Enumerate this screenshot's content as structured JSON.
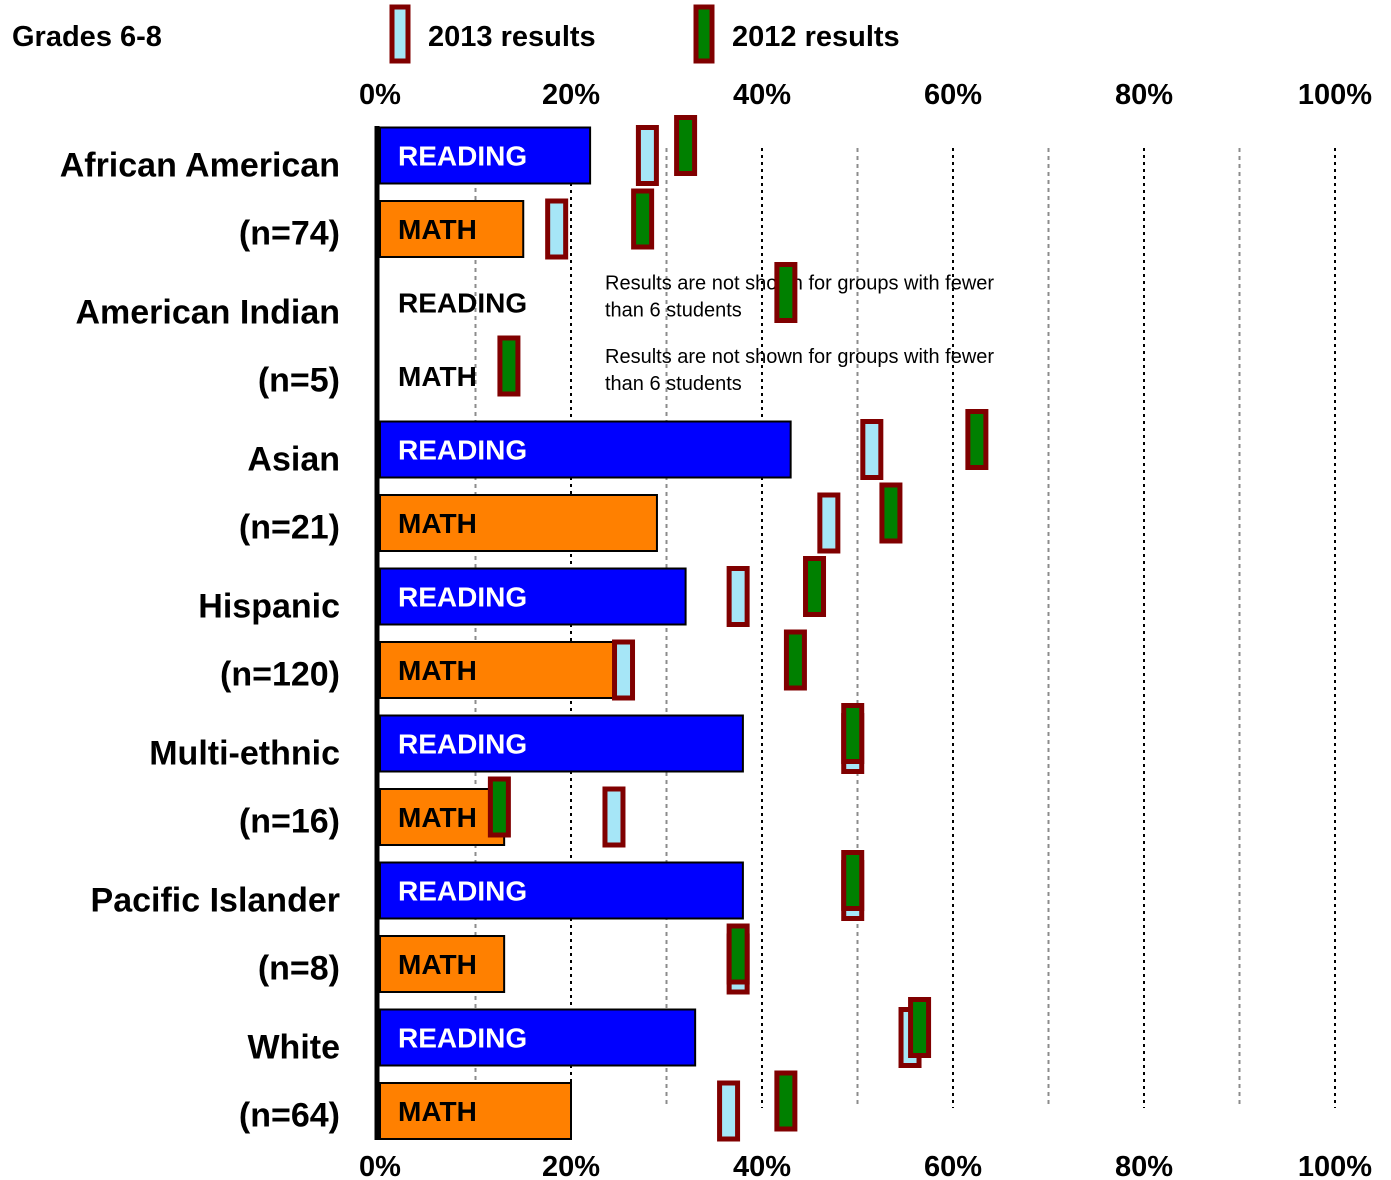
{
  "chart_data": {
    "type": "bar",
    "orientation": "horizontal",
    "title": "Grades 6-8",
    "xlim": [
      0,
      100
    ],
    "x_ticks": [
      "0%",
      "20%",
      "40%",
      "60%",
      "80%",
      "100%"
    ],
    "grid": true,
    "legend": {
      "placement": "top",
      "entries": [
        {
          "name": "2013 results",
          "marker": "light-blue-box"
        },
        {
          "name": "2012 results",
          "marker": "green-box"
        }
      ]
    },
    "colors": {
      "reading": "#0000ff",
      "math": "#ff8000",
      "marker_border": "#800000",
      "marker_2013": "#a6e6f7",
      "marker_2012": "#008000",
      "reading_text": "#ffffff",
      "math_text": "#000000"
    },
    "note": "Results are not shown for groups with fewer than 6 students",
    "groups": [
      {
        "name": "African American",
        "n": "(n=74)",
        "rows": [
          {
            "subject": "READING",
            "value": 22,
            "comparison_2013": 28,
            "comparison_2012": 32
          },
          {
            "subject": "MATH",
            "value": 15,
            "comparison_2013": 18.5,
            "comparison_2012": 27.5
          }
        ]
      },
      {
        "name": "American Indian",
        "n": "(n=5)",
        "rows": [
          {
            "subject": "READING",
            "value": null,
            "comparison_2013": null,
            "comparison_2012": 42.5,
            "note": true
          },
          {
            "subject": "MATH",
            "value": null,
            "comparison_2013": null,
            "comparison_2012": 13.5,
            "note": true
          }
        ]
      },
      {
        "name": "Asian",
        "n": "(n=21)",
        "rows": [
          {
            "subject": "READING",
            "value": 43,
            "comparison_2013": 51.5,
            "comparison_2012": 62.5
          },
          {
            "subject": "MATH",
            "value": 29,
            "comparison_2013": 47,
            "comparison_2012": 53.5
          }
        ]
      },
      {
        "name": "Hispanic",
        "n": "(n=120)",
        "rows": [
          {
            "subject": "READING",
            "value": 32,
            "comparison_2013": 37.5,
            "comparison_2012": 45.5
          },
          {
            "subject": "MATH",
            "value": 26,
            "comparison_2013": 25.5,
            "comparison_2012": 43.5
          }
        ]
      },
      {
        "name": "Multi-ethnic",
        "n": "(n=16)",
        "rows": [
          {
            "subject": "READING",
            "value": 38,
            "comparison_2013": 49.5,
            "comparison_2012": 49.5
          },
          {
            "subject": "MATH",
            "value": 13,
            "comparison_2013": 24.5,
            "comparison_2012": 12.5
          }
        ]
      },
      {
        "name": "Pacific Islander",
        "n": "(n=8)",
        "rows": [
          {
            "subject": "READING",
            "value": 38,
            "comparison_2013": 49.5,
            "comparison_2012": 49.5
          },
          {
            "subject": "MATH",
            "value": 13,
            "comparison_2013": 37.5,
            "comparison_2012": 37.5
          }
        ]
      },
      {
        "name": "White",
        "n": "(n=64)",
        "rows": [
          {
            "subject": "READING",
            "value": 33,
            "comparison_2013": 55.5,
            "comparison_2012": 56.5
          },
          {
            "subject": "MATH",
            "value": 20,
            "comparison_2013": 36.5,
            "comparison_2012": 42.5
          }
        ]
      }
    ]
  }
}
